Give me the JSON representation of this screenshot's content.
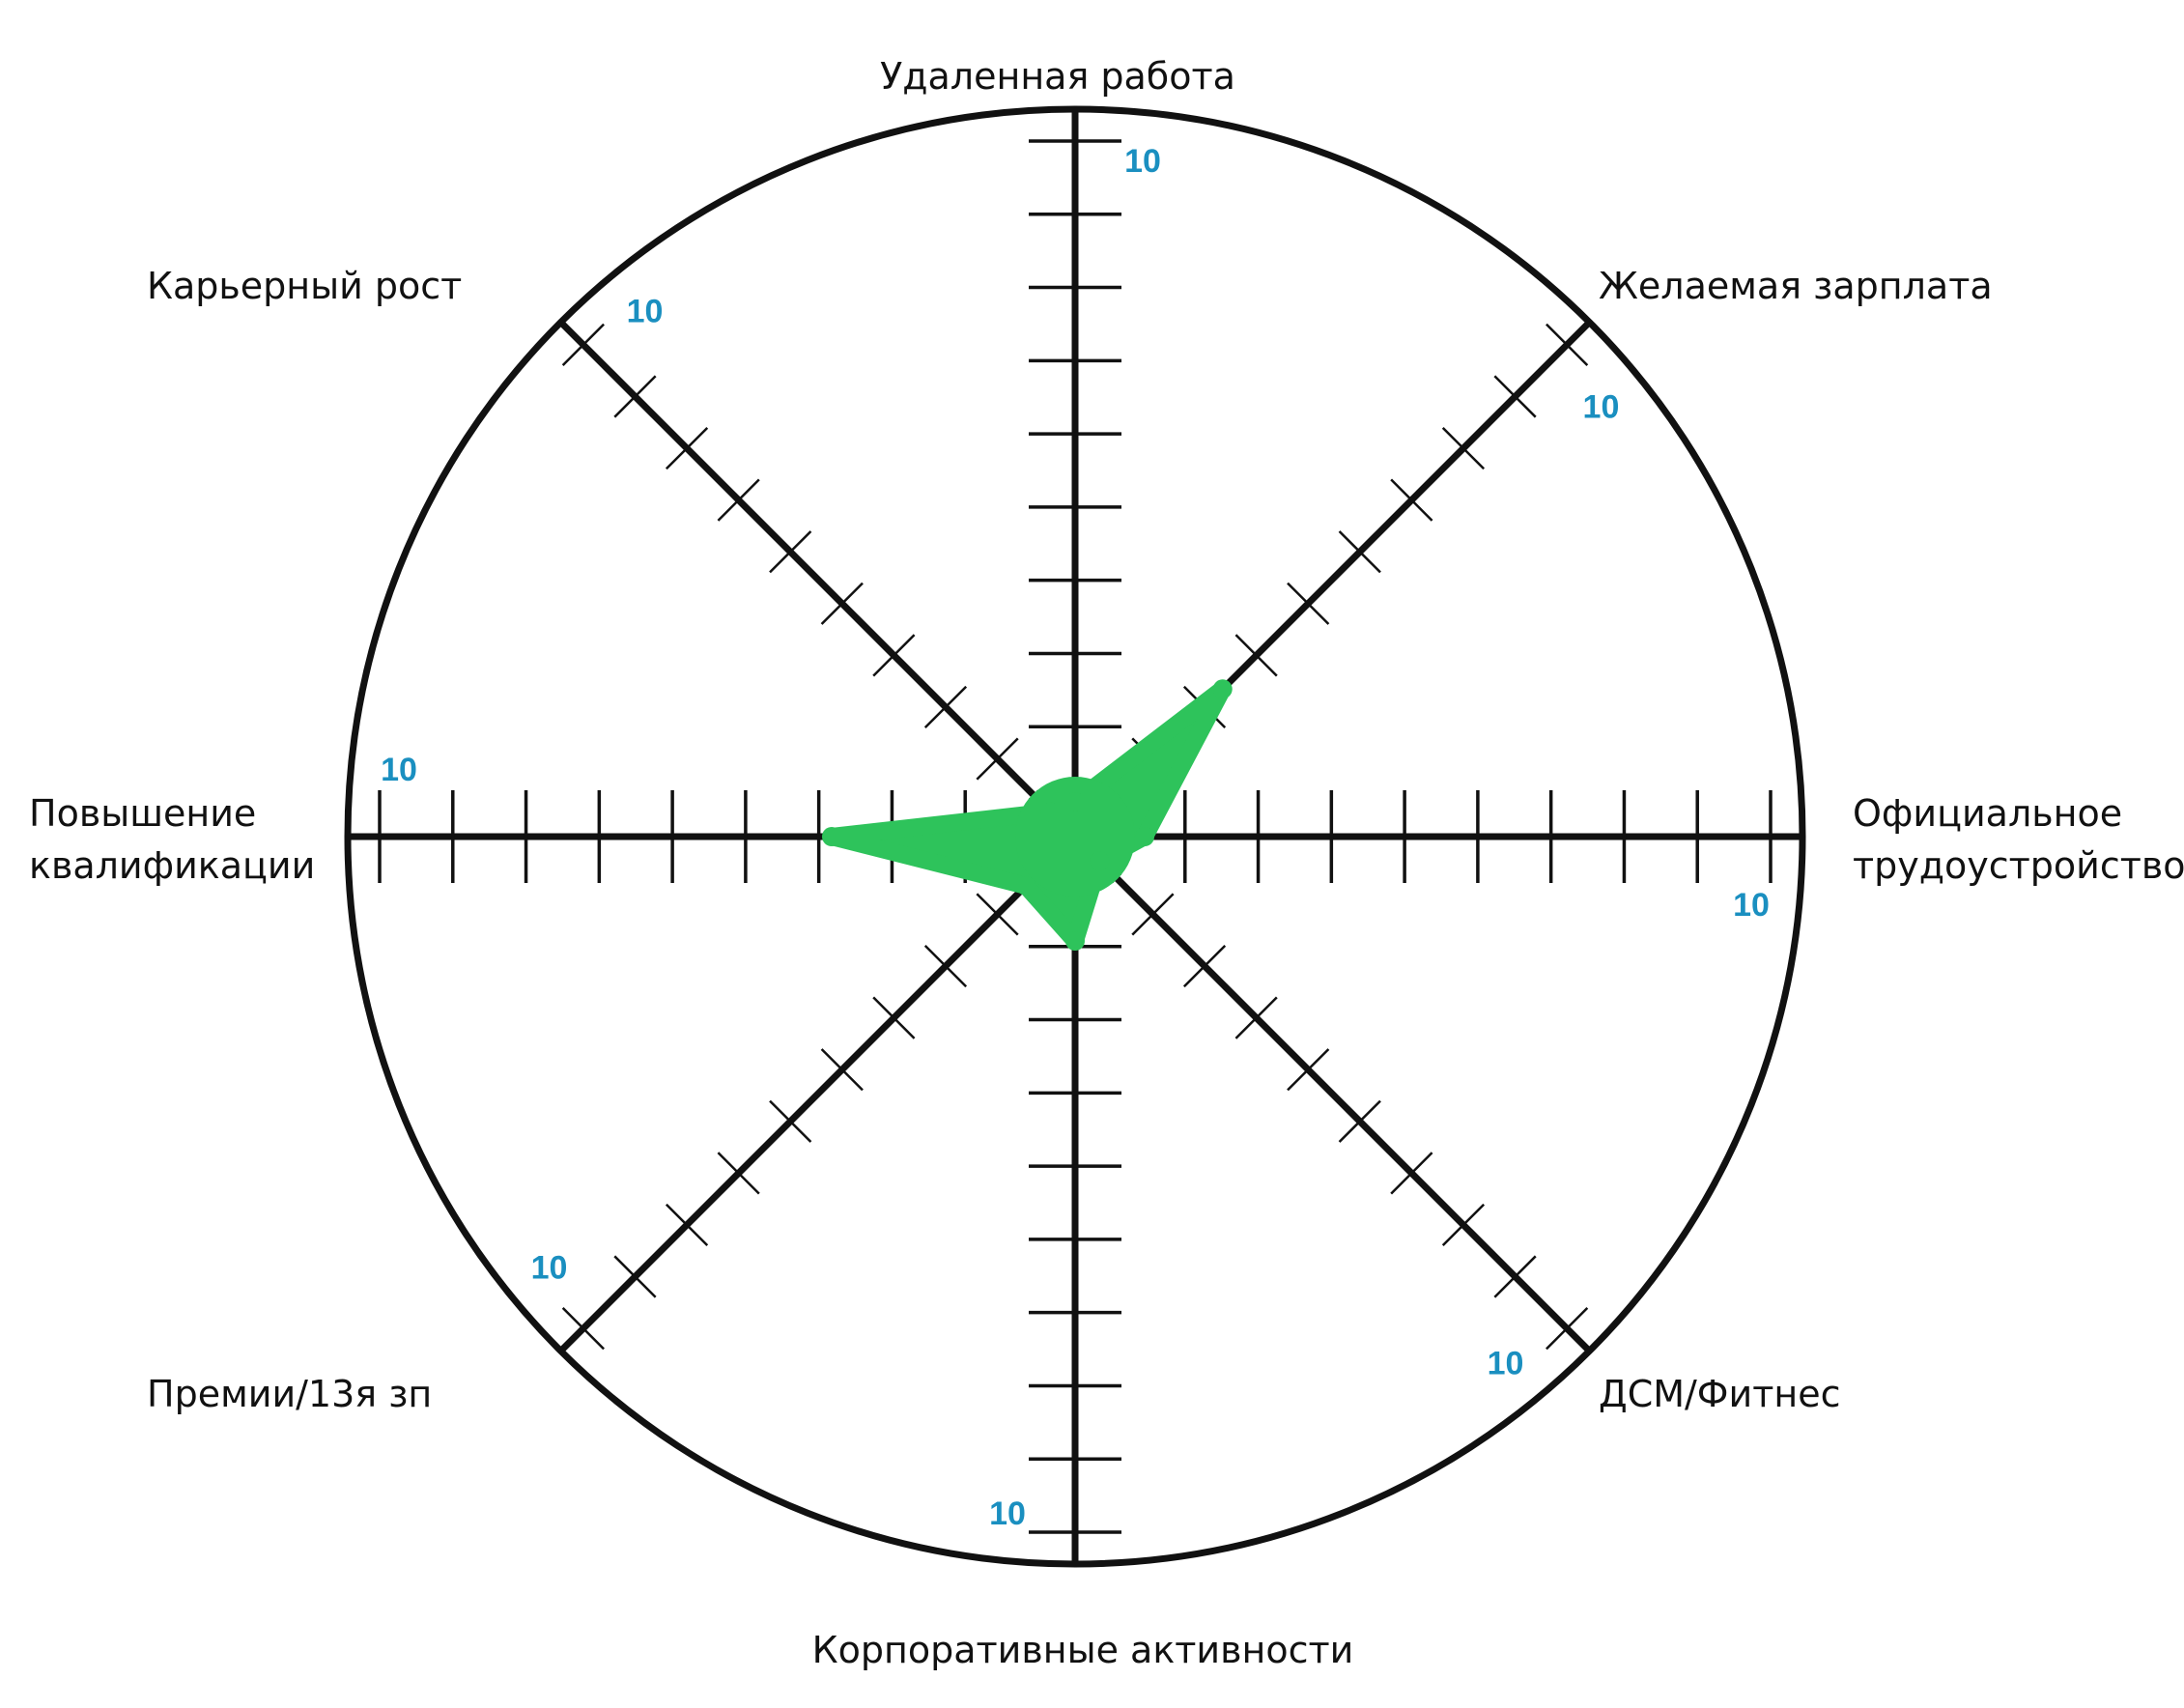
{
  "chart_data": {
    "type": "radar",
    "max_value": 10,
    "tick_count": 10,
    "max_label": "10",
    "grid": true,
    "colors": {
      "fill": "#2ec35b",
      "axis": "#111111",
      "max_label": "#1a8fc0"
    },
    "axes": [
      {
        "label_lines": [
          "Удаленная работа"
        ]
      },
      {
        "label_lines": [
          "Желаемая зарплата"
        ]
      },
      {
        "label_lines": [
          "Официальное",
          "трудоустройство"
        ]
      },
      {
        "label_lines": [
          "ДСМ/Фитнес"
        ]
      },
      {
        "label_lines": [
          "Корпоративные активности"
        ]
      },
      {
        "label_lines": [
          "Премии/13я зп"
        ]
      },
      {
        "label_lines": [
          "Повышение",
          "квалификации"
        ]
      },
      {
        "label_lines": [
          "Карьерный рост"
        ]
      }
    ],
    "series": [
      {
        "values": [
          0.5,
          3,
          1,
          0.5,
          1.5,
          1,
          3.5,
          0.5
        ]
      }
    ]
  }
}
